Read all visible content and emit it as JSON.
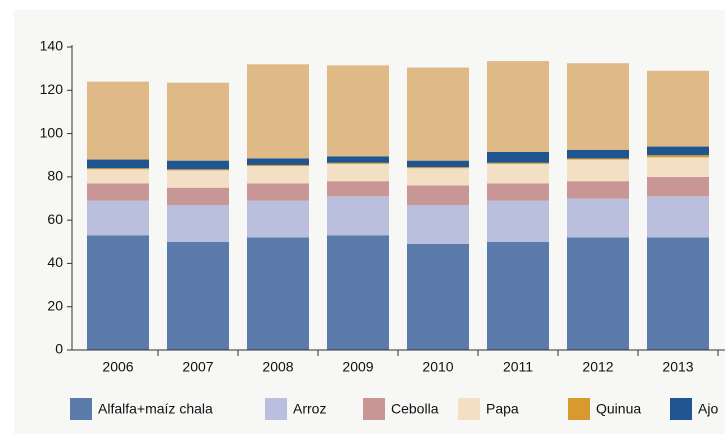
{
  "chart_data": {
    "type": "stacked-bar",
    "categories": [
      "2006",
      "2007",
      "2008",
      "2009",
      "2010",
      "2011",
      "2012",
      "2013"
    ],
    "series": [
      {
        "name": "Alfalfa+maíz chala",
        "color": "#5b7bab",
        "values": [
          53,
          50,
          52,
          53,
          49,
          50,
          52,
          52
        ]
      },
      {
        "name": "Arroz",
        "color": "#b9bfdc",
        "values": [
          16,
          17,
          17,
          18,
          18,
          19,
          18,
          19
        ]
      },
      {
        "name": "Cebolla",
        "color": "#c99696",
        "values": [
          8,
          8,
          8,
          7,
          9,
          8,
          8,
          9
        ]
      },
      {
        "name": "Papa",
        "color": "#f3e0c4",
        "values": [
          6.5,
          8,
          8,
          8,
          8,
          9,
          10,
          9
        ]
      },
      {
        "name": "Quinua",
        "color": "#d89a2e",
        "values": [
          0.5,
          0.5,
          0.5,
          0.5,
          0.5,
          0.5,
          0.5,
          1
        ]
      },
      {
        "name": "Ajo",
        "color": "#1f5591",
        "values": [
          4,
          4,
          3,
          3,
          3,
          5,
          4,
          4
        ]
      },
      {
        "color": "#dfba86",
        "values": [
          36,
          36,
          43.5,
          42,
          43,
          42,
          40,
          35
        ]
      }
    ],
    "ylim": [
      0,
      140
    ],
    "yticks": [
      0,
      20,
      40,
      60,
      80,
      100,
      120,
      140
    ]
  }
}
